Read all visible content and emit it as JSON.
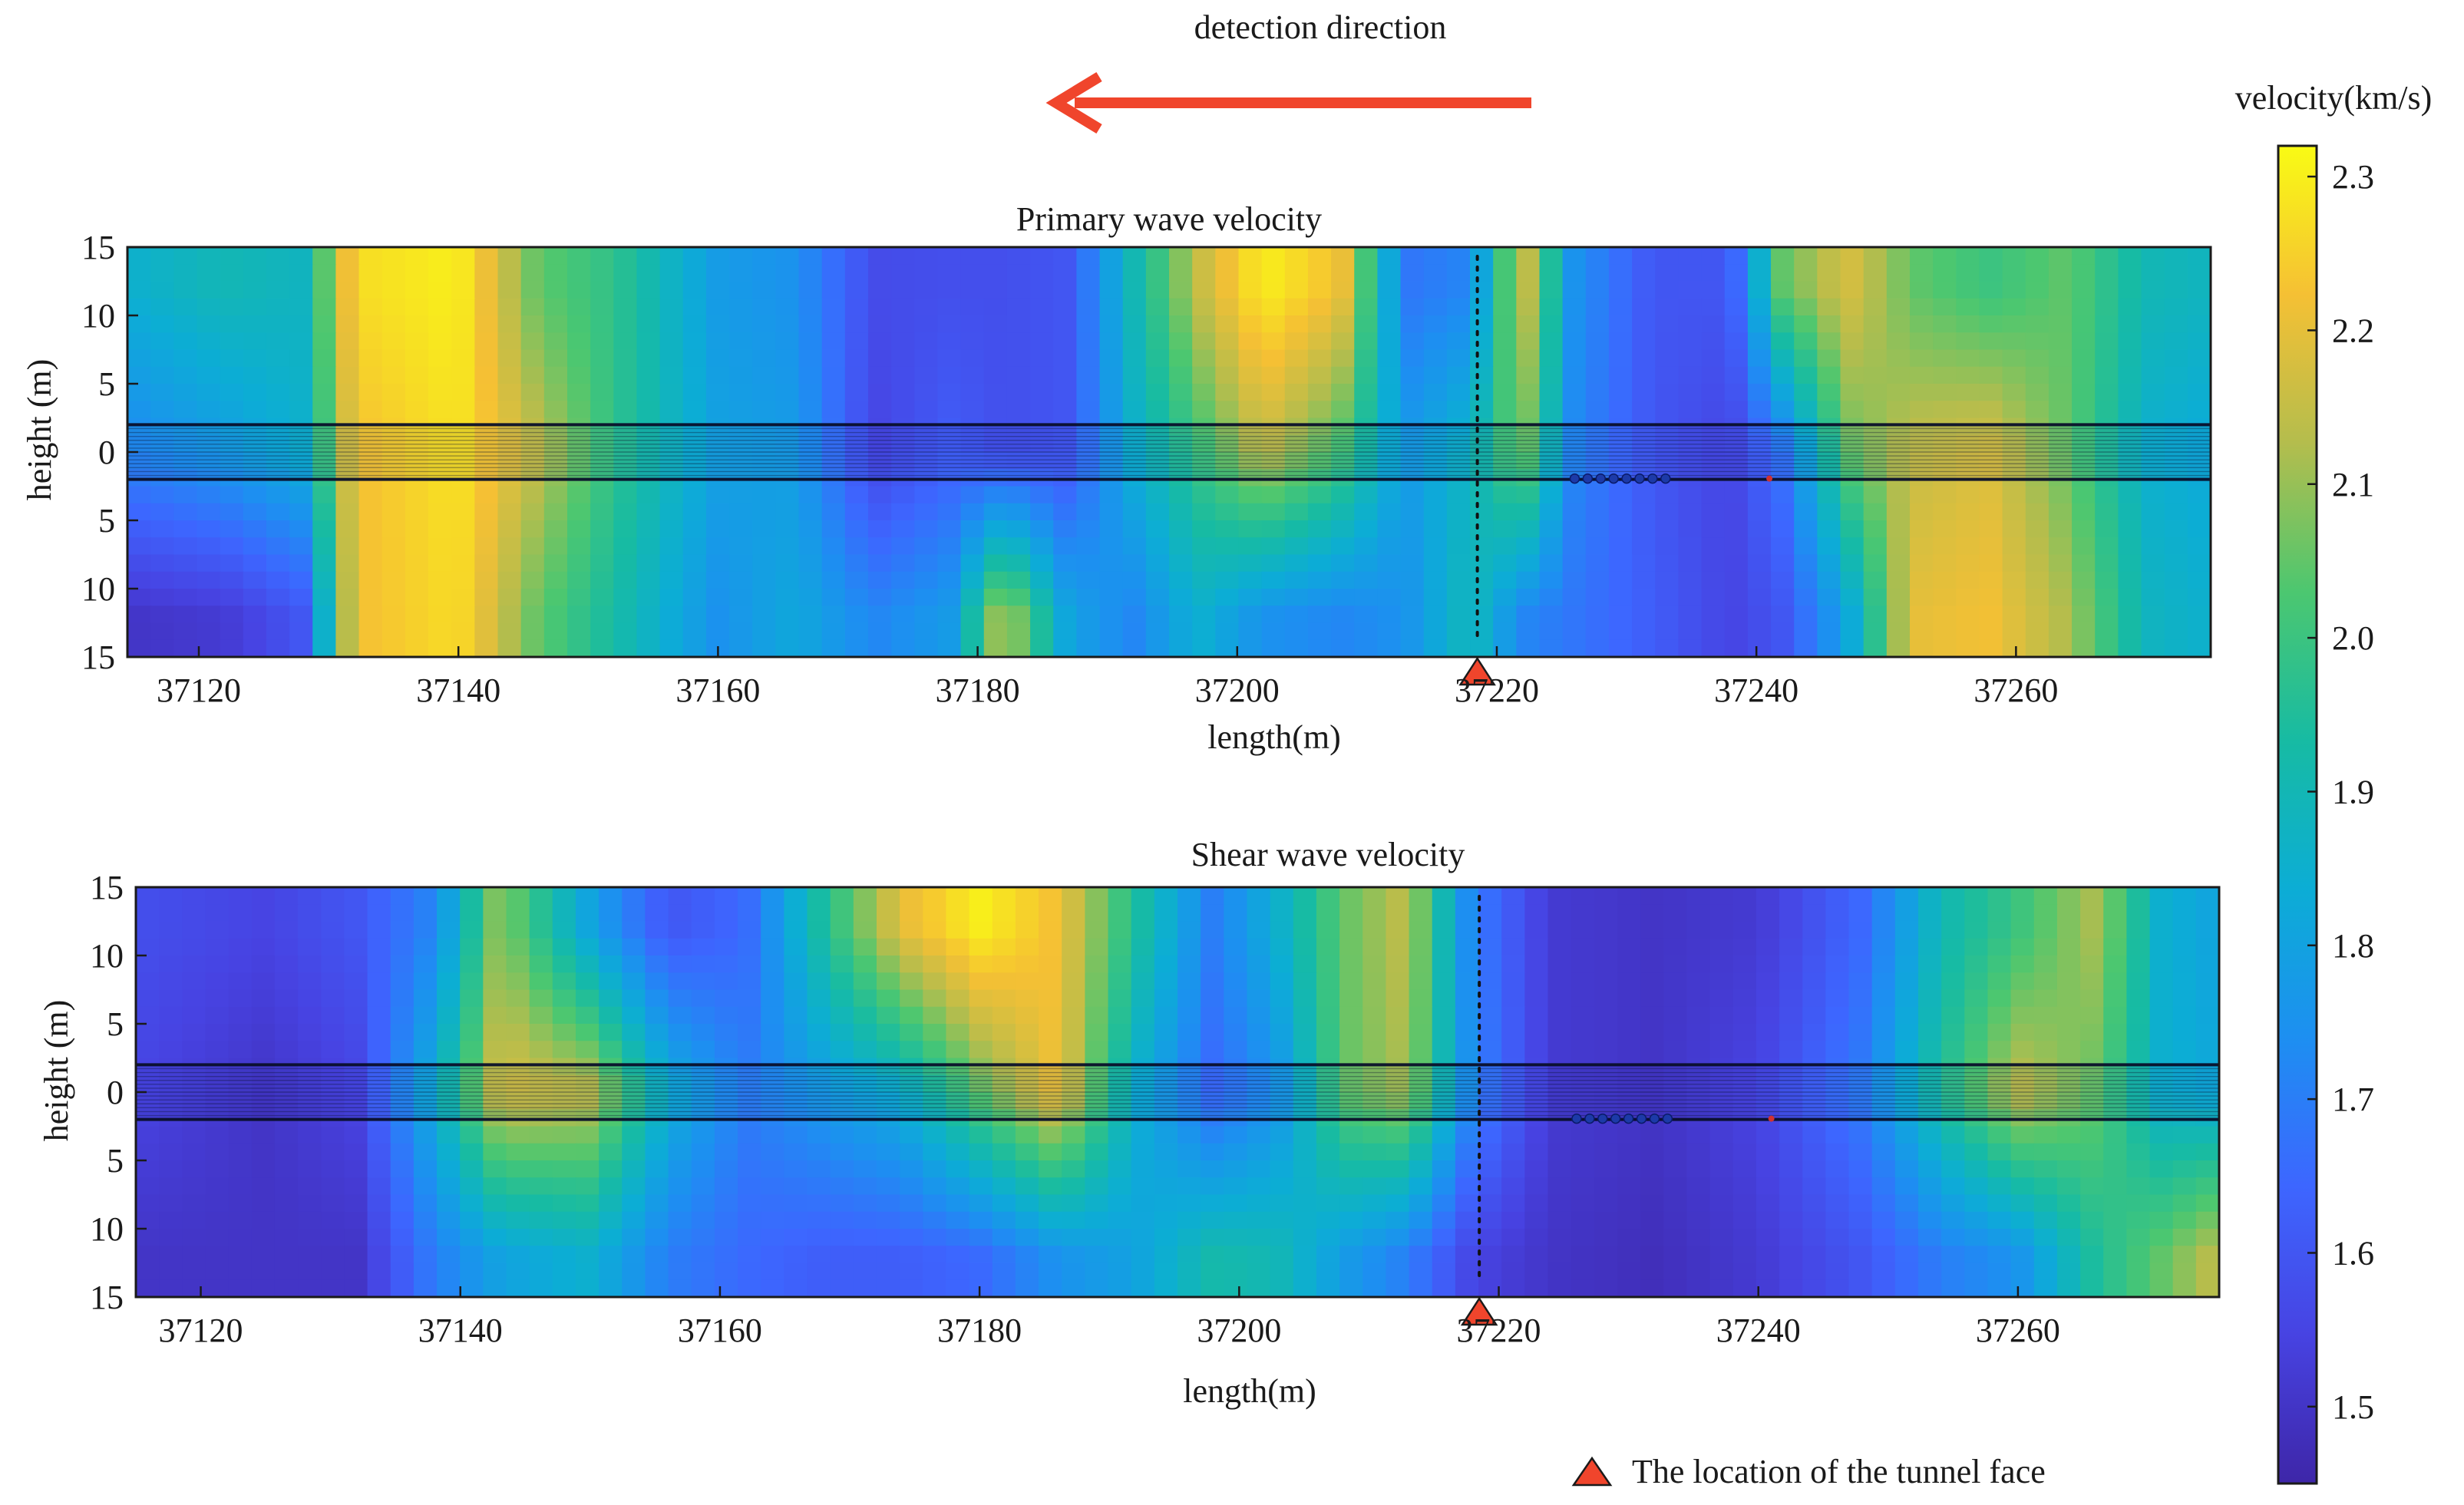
{
  "header": {
    "direction_label": "detection direction",
    "arrow_color": "#f0452c"
  },
  "legend": {
    "tunnel_face_label": "The location of the tunnel face",
    "tunnel_face_color": "#f0452c",
    "tunnel_face_icon": "triangle-marker-icon"
  },
  "colorbar": {
    "title": "velocity(km/s)",
    "range": [
      1.45,
      2.32
    ],
    "ticks": [
      "2.3",
      "2.2",
      "2.1",
      "2.0",
      "1.9",
      "1.8",
      "1.7",
      "1.6",
      "1.5"
    ],
    "colormap": [
      "#3e26a8",
      "#4743e2",
      "#3d66ff",
      "#1d8ff1",
      "#0cadd5",
      "#17bba3",
      "#4cc770",
      "#b4bd4d",
      "#f5c034",
      "#f9fb14"
    ]
  },
  "chart_data": [
    {
      "type": "heatmap",
      "title": "Primary wave velocity",
      "xlabel": "length(m)",
      "ylabel": "height (m)",
      "xlim": [
        37114.5,
        37275
      ],
      "ylim": [
        -15,
        15
      ],
      "xticks": [
        37120,
        37140,
        37160,
        37180,
        37200,
        37220,
        37240,
        37260
      ],
      "xtick_labels": [
        "37120",
        "37140",
        "37160",
        "37180",
        "37200",
        "37220",
        "37240",
        "37260"
      ],
      "yticks": [
        15,
        10,
        5,
        0,
        -5,
        -10,
        -15
      ],
      "ytick_labels": [
        "15",
        "10",
        "5",
        "0",
        "5",
        "10",
        "15"
      ],
      "tunnel_band_y": [
        -2,
        2
      ],
      "tunnel_face_x": 37218.5,
      "sensor_x": [
        37226,
        37227,
        37228,
        37229,
        37230,
        37231,
        37232,
        37233
      ],
      "source_x": 37241,
      "field_unit": "km/s",
      "field_resolution": 90,
      "columns": [
        {
          "x": 37114.5,
          "v": 1.72,
          "vt": 1.85,
          "vb": 1.5
        },
        {
          "x": 37122,
          "v": 1.78,
          "vt": 1.9,
          "vb": 1.52
        },
        {
          "x": 37128,
          "v": 1.85,
          "vt": 1.88,
          "vb": 1.6
        },
        {
          "x": 37132,
          "v": 2.22,
          "vt": 2.27,
          "vb": 2.22
        },
        {
          "x": 37140,
          "v": 2.28,
          "vt": 2.3,
          "vb": 2.27
        },
        {
          "x": 37146,
          "v": 2.15,
          "vt": 2.05,
          "vb": 2.05
        },
        {
          "x": 37152,
          "v": 1.98,
          "vt": 1.98,
          "vb": 1.93
        },
        {
          "x": 37160,
          "v": 1.8,
          "vt": 1.78,
          "vb": 1.75
        },
        {
          "x": 37166,
          "v": 1.78,
          "vt": 1.75,
          "vb": 1.82
        },
        {
          "x": 37172,
          "v": 1.55,
          "vt": 1.57,
          "vb": 1.72
        },
        {
          "x": 37178,
          "v": 1.62,
          "vt": 1.58,
          "vb": 1.78
        },
        {
          "x": 37182,
          "v": 1.58,
          "vt": 1.58,
          "vb": 2.15
        },
        {
          "x": 37187,
          "v": 1.6,
          "vt": 1.6,
          "vb": 1.8
        },
        {
          "x": 37192,
          "v": 1.85,
          "vt": 1.9,
          "vb": 1.72
        },
        {
          "x": 37197,
          "v": 2.0,
          "vt": 2.15,
          "vb": 1.85
        },
        {
          "x": 37202,
          "v": 2.15,
          "vt": 2.3,
          "vb": 1.75
        },
        {
          "x": 37208,
          "v": 2.02,
          "vt": 2.22,
          "vb": 1.72
        },
        {
          "x": 37213,
          "v": 1.78,
          "vt": 1.68,
          "vb": 1.75
        },
        {
          "x": 37218,
          "v": 1.88,
          "vt": 1.72,
          "vb": 1.9
        },
        {
          "x": 37222,
          "v": 2.08,
          "vt": 2.18,
          "vb": 1.72
        },
        {
          "x": 37226,
          "v": 1.72,
          "vt": 1.75,
          "vb": 1.68
        },
        {
          "x": 37232,
          "v": 1.6,
          "vt": 1.6,
          "vb": 1.62
        },
        {
          "x": 37238,
          "v": 1.55,
          "vt": 1.6,
          "vb": 1.55
        },
        {
          "x": 37242,
          "v": 1.68,
          "vt": 2.05,
          "vb": 1.6
        },
        {
          "x": 37247,
          "v": 2.05,
          "vt": 2.18,
          "vb": 1.8
        },
        {
          "x": 37252,
          "v": 2.15,
          "vt": 2.05,
          "vb": 2.2
        },
        {
          "x": 37258,
          "v": 2.18,
          "vt": 2.0,
          "vb": 2.22
        },
        {
          "x": 37264,
          "v": 2.05,
          "vt": 2.05,
          "vb": 2.12
        },
        {
          "x": 37270,
          "v": 1.85,
          "vt": 1.9,
          "vb": 1.88
        },
        {
          "x": 37275,
          "v": 1.82,
          "vt": 1.88,
          "vb": 1.85
        }
      ]
    },
    {
      "type": "heatmap",
      "title": "Shear wave velocity",
      "xlabel": "length(m)",
      "ylabel": "height (m)",
      "xlim": [
        37115,
        37275.5
      ],
      "ylim": [
        -15,
        15
      ],
      "xticks": [
        37120,
        37140,
        37160,
        37180,
        37200,
        37220,
        37240,
        37260
      ],
      "xtick_labels": [
        "37120",
        "37140",
        "37160",
        "37180",
        "37200",
        "37220",
        "37240",
        "37260"
      ],
      "yticks": [
        15,
        10,
        5,
        0,
        -5,
        -10,
        -15
      ],
      "ytick_labels": [
        "15",
        "10",
        "5",
        "0",
        "5",
        "10",
        "15"
      ],
      "tunnel_band_y": [
        -2,
        2
      ],
      "tunnel_face_x": 37218.5,
      "sensor_x": [
        37226,
        37227,
        37228,
        37229,
        37230,
        37231,
        37232,
        37233
      ],
      "source_x": 37241,
      "field_unit": "km/s",
      "field_resolution": 90,
      "columns": [
        {
          "x": 37115,
          "v": 1.55,
          "vt": 1.58,
          "vb": 1.5
        },
        {
          "x": 37125,
          "v": 1.5,
          "vt": 1.55,
          "vb": 1.5
        },
        {
          "x": 37132,
          "v": 1.55,
          "vt": 1.6,
          "vb": 1.5
        },
        {
          "x": 37138,
          "v": 1.85,
          "vt": 1.72,
          "vb": 1.7
        },
        {
          "x": 37143,
          "v": 2.18,
          "vt": 2.1,
          "vb": 1.8
        },
        {
          "x": 37150,
          "v": 2.15,
          "vt": 1.8,
          "vb": 1.85
        },
        {
          "x": 37156,
          "v": 1.85,
          "vt": 1.6,
          "vb": 1.7
        },
        {
          "x": 37162,
          "v": 1.7,
          "vt": 1.65,
          "vb": 1.65
        },
        {
          "x": 37168,
          "v": 1.78,
          "vt": 1.95,
          "vb": 1.62
        },
        {
          "x": 37174,
          "v": 1.85,
          "vt": 2.2,
          "vb": 1.62
        },
        {
          "x": 37180,
          "v": 2.05,
          "vt": 2.3,
          "vb": 1.65
        },
        {
          "x": 37186,
          "v": 2.22,
          "vt": 2.22,
          "vb": 1.75
        },
        {
          "x": 37192,
          "v": 1.85,
          "vt": 1.95,
          "vb": 1.8
        },
        {
          "x": 37198,
          "v": 1.65,
          "vt": 1.7,
          "vb": 1.92
        },
        {
          "x": 37203,
          "v": 1.75,
          "vt": 1.85,
          "vb": 1.9
        },
        {
          "x": 37208,
          "v": 2.05,
          "vt": 2.05,
          "vb": 1.78
        },
        {
          "x": 37213,
          "v": 2.12,
          "vt": 2.15,
          "vb": 1.7
        },
        {
          "x": 37218,
          "v": 1.72,
          "vt": 1.7,
          "vb": 1.55
        },
        {
          "x": 37224,
          "v": 1.52,
          "vt": 1.52,
          "vb": 1.5
        },
        {
          "x": 37232,
          "v": 1.5,
          "vt": 1.5,
          "vb": 1.48
        },
        {
          "x": 37240,
          "v": 1.55,
          "vt": 1.52,
          "vb": 1.52
        },
        {
          "x": 37248,
          "v": 1.7,
          "vt": 1.65,
          "vb": 1.6
        },
        {
          "x": 37254,
          "v": 1.95,
          "vt": 1.9,
          "vb": 1.7
        },
        {
          "x": 37260,
          "v": 2.15,
          "vt": 2.0,
          "vb": 1.75
        },
        {
          "x": 37266,
          "v": 2.05,
          "vt": 2.12,
          "vb": 1.95
        },
        {
          "x": 37271,
          "v": 1.85,
          "vt": 1.85,
          "vb": 2.05
        },
        {
          "x": 37275.5,
          "v": 1.82,
          "vt": 1.8,
          "vb": 2.15
        }
      ]
    }
  ]
}
